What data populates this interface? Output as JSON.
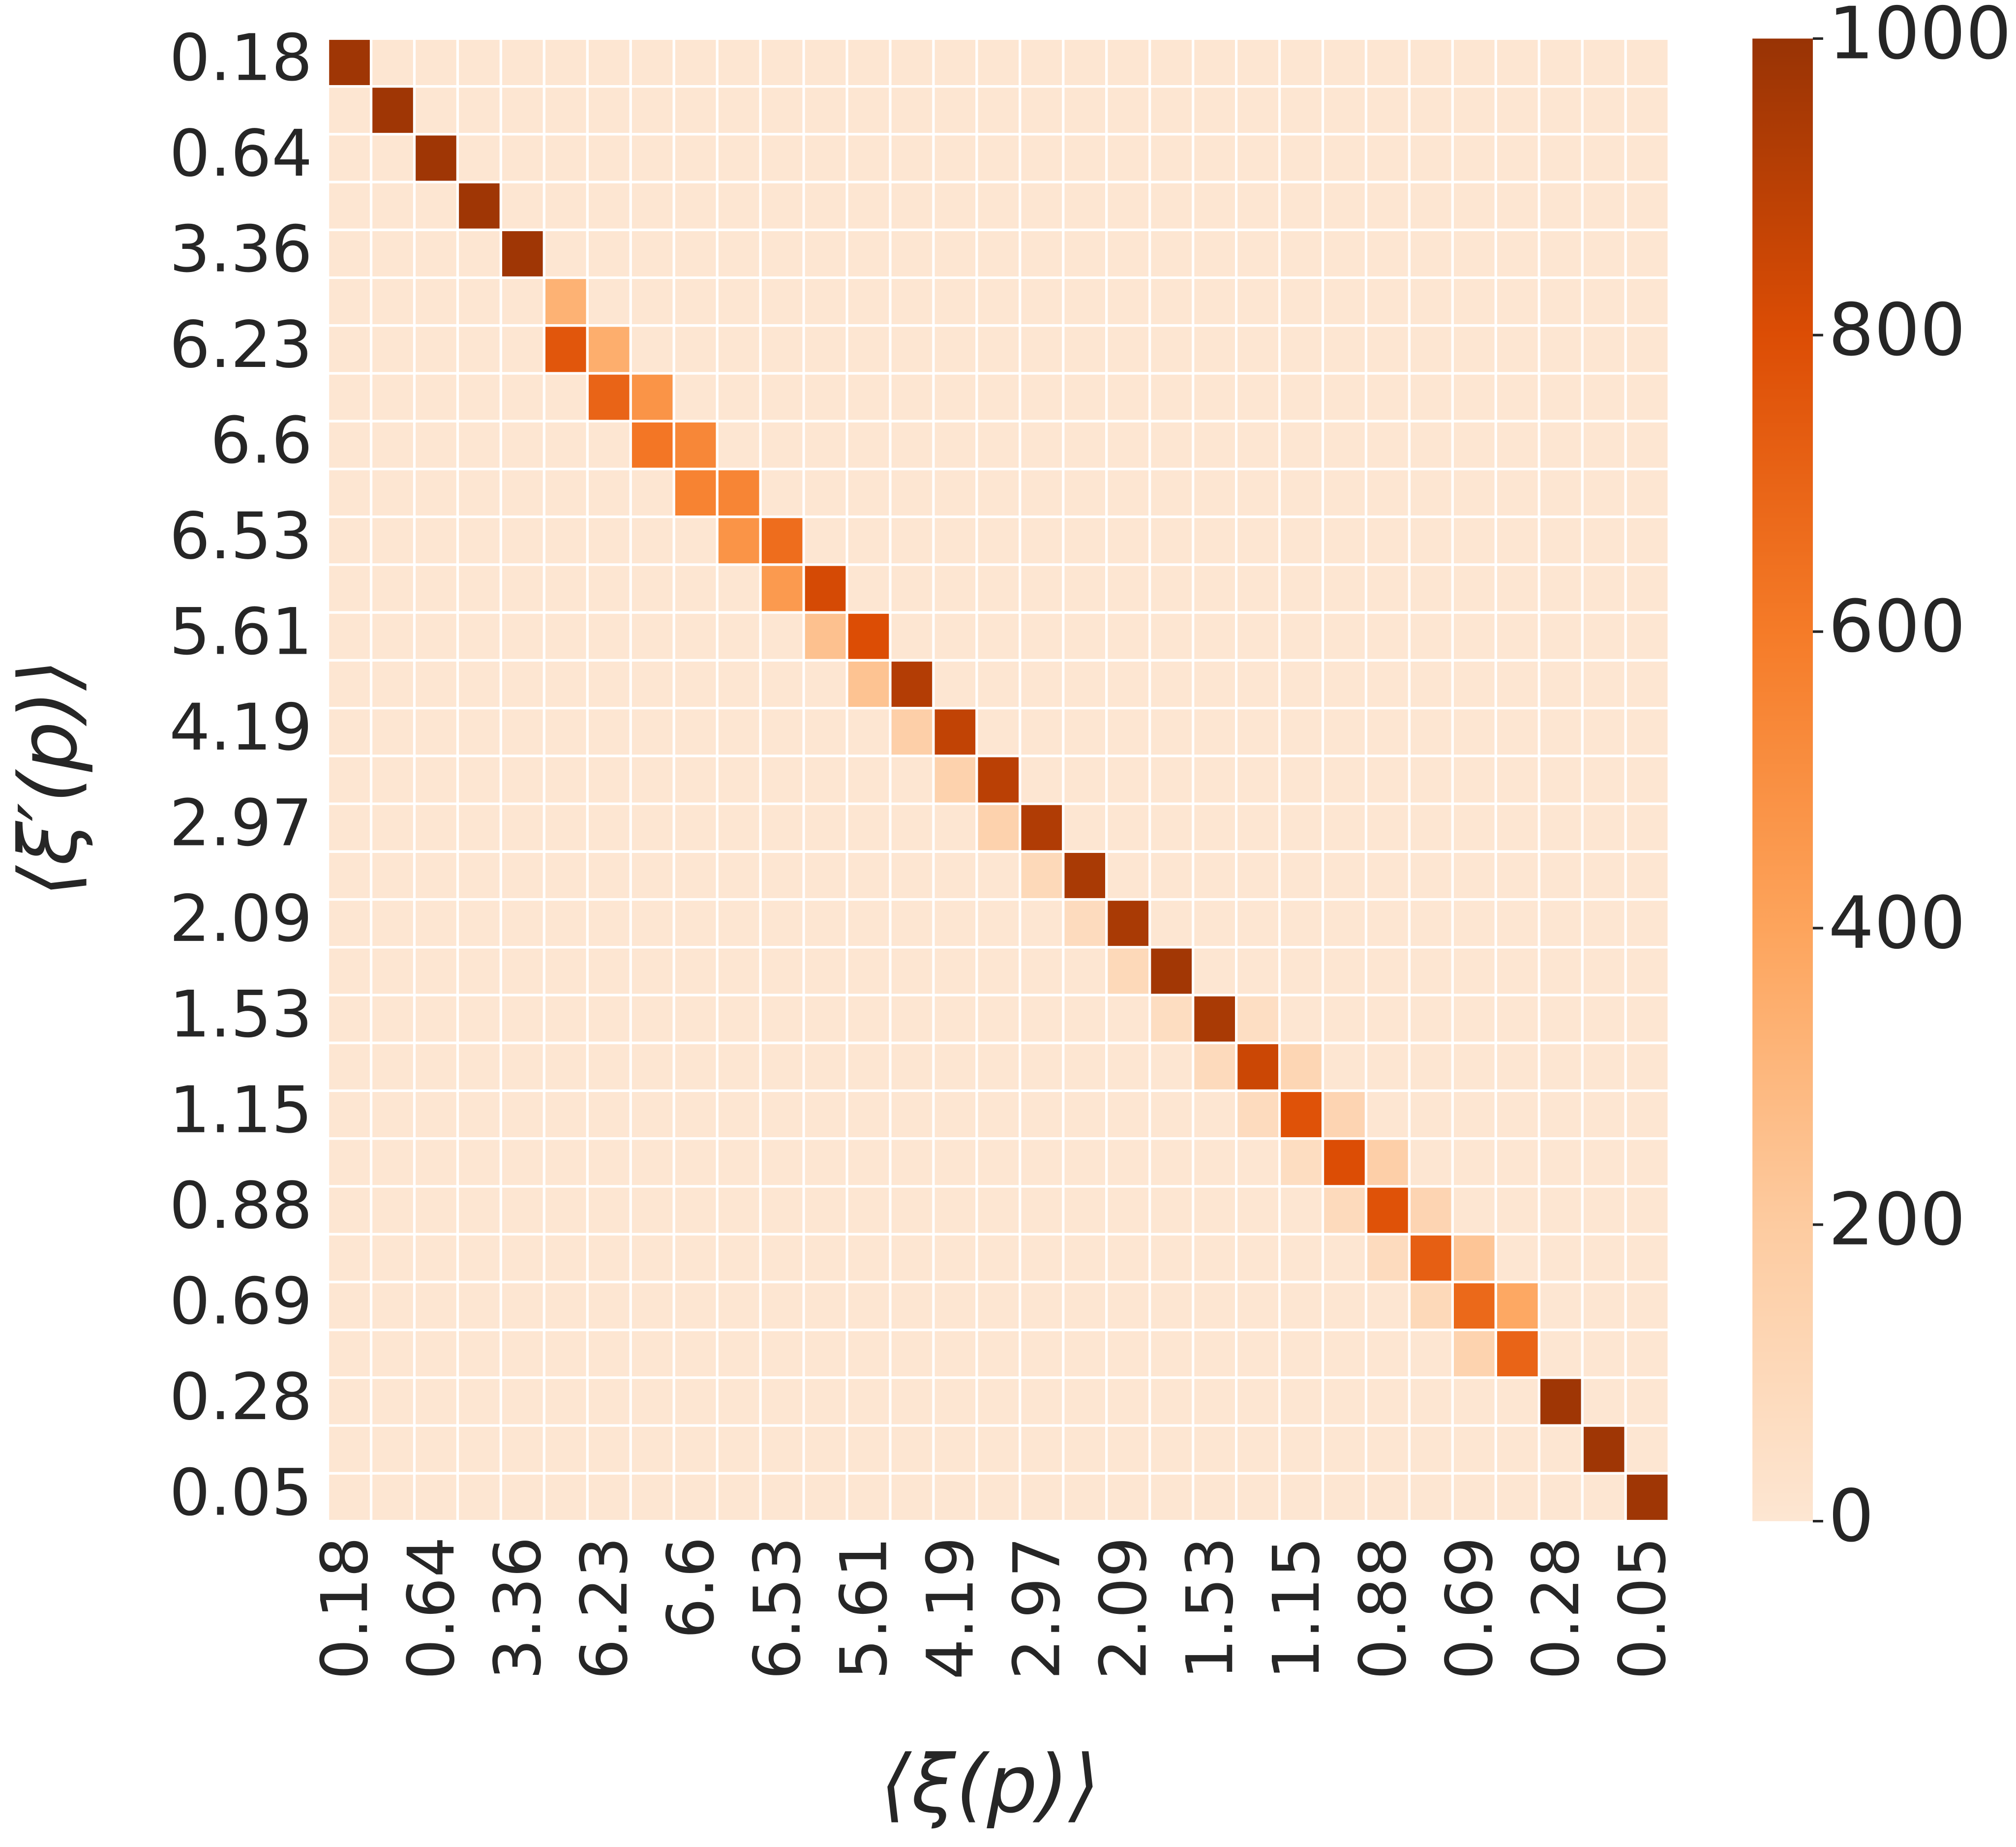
{
  "chart_data": {
    "type": "heatmap",
    "xlabel": "⟨ξ(p)⟩",
    "ylabel": "⟨ξ′(p)⟩",
    "x_categories": [
      "0.18",
      null,
      "0.64",
      null,
      "3.36",
      null,
      "6.23",
      null,
      "6.6",
      null,
      "6.53",
      null,
      "5.61",
      null,
      "4.19",
      null,
      "2.97",
      null,
      "2.09",
      null,
      "1.53",
      null,
      "1.15",
      null,
      "0.88",
      null,
      "0.69",
      null,
      "0.28",
      null,
      "0.05"
    ],
    "y_categories": [
      "0.18",
      null,
      "0.64",
      null,
      "3.36",
      null,
      "6.23",
      null,
      "6.6",
      null,
      "6.53",
      null,
      "5.61",
      null,
      "4.19",
      null,
      "2.97",
      null,
      "2.09",
      null,
      "1.53",
      null,
      "1.15",
      null,
      "0.88",
      null,
      "0.69",
      null,
      "0.28",
      null,
      "0.05"
    ],
    "values": [
      [
        980,
        0,
        0,
        0,
        0,
        0,
        0,
        0,
        0,
        0,
        0,
        0,
        0,
        0,
        0,
        0,
        0,
        0,
        0,
        0,
        0,
        0,
        0,
        0,
        0,
        0,
        0,
        0,
        0,
        0,
        0
      ],
      [
        0,
        980,
        0,
        0,
        0,
        0,
        0,
        0,
        0,
        0,
        0,
        0,
        0,
        0,
        0,
        0,
        0,
        0,
        0,
        0,
        0,
        0,
        0,
        0,
        0,
        0,
        0,
        0,
        0,
        0,
        0
      ],
      [
        0,
        0,
        980,
        0,
        0,
        0,
        0,
        0,
        0,
        0,
        0,
        0,
        0,
        0,
        0,
        0,
        0,
        0,
        0,
        0,
        0,
        0,
        0,
        0,
        0,
        0,
        0,
        0,
        0,
        0,
        0
      ],
      [
        0,
        0,
        0,
        980,
        0,
        0,
        0,
        0,
        0,
        0,
        0,
        0,
        0,
        0,
        0,
        0,
        0,
        0,
        0,
        0,
        0,
        0,
        0,
        0,
        0,
        0,
        0,
        0,
        0,
        0,
        0
      ],
      [
        0,
        0,
        0,
        0,
        980,
        0,
        0,
        0,
        0,
        0,
        0,
        0,
        0,
        0,
        0,
        0,
        0,
        0,
        0,
        0,
        0,
        0,
        0,
        0,
        0,
        0,
        0,
        0,
        0,
        0,
        0
      ],
      [
        0,
        0,
        0,
        0,
        0,
        330,
        0,
        0,
        0,
        0,
        0,
        0,
        0,
        0,
        0,
        0,
        0,
        0,
        0,
        0,
        0,
        0,
        0,
        0,
        0,
        0,
        0,
        0,
        0,
        0,
        0
      ],
      [
        0,
        0,
        0,
        0,
        0,
        760,
        350,
        0,
        0,
        0,
        0,
        0,
        0,
        0,
        0,
        0,
        0,
        0,
        0,
        0,
        0,
        0,
        0,
        0,
        0,
        0,
        0,
        0,
        0,
        0,
        0
      ],
      [
        0,
        0,
        0,
        0,
        0,
        0,
        700,
        480,
        0,
        0,
        0,
        0,
        0,
        0,
        0,
        0,
        0,
        0,
        0,
        0,
        0,
        0,
        0,
        0,
        0,
        0,
        0,
        0,
        0,
        0,
        0
      ],
      [
        0,
        0,
        0,
        0,
        0,
        0,
        0,
        620,
        540,
        0,
        0,
        0,
        0,
        0,
        0,
        0,
        0,
        0,
        0,
        0,
        0,
        0,
        0,
        0,
        0,
        0,
        0,
        0,
        0,
        0,
        0
      ],
      [
        0,
        0,
        0,
        0,
        0,
        0,
        0,
        0,
        560,
        550,
        0,
        0,
        0,
        0,
        0,
        0,
        0,
        0,
        0,
        0,
        0,
        0,
        0,
        0,
        0,
        0,
        0,
        0,
        0,
        0,
        0
      ],
      [
        0,
        0,
        0,
        0,
        0,
        0,
        0,
        0,
        0,
        480,
        660,
        0,
        0,
        0,
        0,
        0,
        0,
        0,
        0,
        0,
        0,
        0,
        0,
        0,
        0,
        0,
        0,
        0,
        0,
        0,
        0
      ],
      [
        0,
        0,
        0,
        0,
        0,
        0,
        0,
        0,
        0,
        0,
        450,
        820,
        0,
        0,
        0,
        0,
        0,
        0,
        0,
        0,
        0,
        0,
        0,
        0,
        0,
        0,
        0,
        0,
        0,
        0,
        0
      ],
      [
        0,
        0,
        0,
        0,
        0,
        0,
        0,
        0,
        0,
        0,
        0,
        250,
        800,
        0,
        0,
        0,
        0,
        0,
        0,
        0,
        0,
        0,
        0,
        0,
        0,
        0,
        0,
        0,
        0,
        0,
        0
      ],
      [
        0,
        0,
        0,
        0,
        0,
        0,
        0,
        0,
        0,
        0,
        0,
        0,
        240,
        920,
        0,
        0,
        0,
        0,
        0,
        0,
        0,
        0,
        0,
        0,
        0,
        0,
        0,
        0,
        0,
        0,
        0
      ],
      [
        0,
        0,
        0,
        0,
        0,
        0,
        0,
        0,
        0,
        0,
        0,
        0,
        0,
        170,
        880,
        0,
        0,
        0,
        0,
        0,
        0,
        0,
        0,
        0,
        0,
        0,
        0,
        0,
        0,
        0,
        0
      ],
      [
        0,
        0,
        0,
        0,
        0,
        0,
        0,
        0,
        0,
        0,
        0,
        0,
        0,
        0,
        150,
        900,
        0,
        0,
        0,
        0,
        0,
        0,
        0,
        0,
        0,
        0,
        0,
        0,
        0,
        0,
        0
      ],
      [
        0,
        0,
        0,
        0,
        0,
        0,
        0,
        0,
        0,
        0,
        0,
        0,
        0,
        0,
        0,
        150,
        930,
        0,
        0,
        0,
        0,
        0,
        0,
        0,
        0,
        0,
        0,
        0,
        0,
        0,
        0
      ],
      [
        0,
        0,
        0,
        0,
        0,
        0,
        0,
        0,
        0,
        0,
        0,
        0,
        0,
        0,
        0,
        0,
        100,
        950,
        0,
        0,
        0,
        0,
        0,
        0,
        0,
        0,
        0,
        0,
        0,
        0,
        0
      ],
      [
        0,
        0,
        0,
        0,
        0,
        0,
        0,
        0,
        0,
        0,
        0,
        0,
        0,
        0,
        0,
        0,
        0,
        80,
        950,
        0,
        0,
        0,
        0,
        0,
        0,
        0,
        0,
        0,
        0,
        0,
        0
      ],
      [
        0,
        0,
        0,
        0,
        0,
        0,
        0,
        0,
        0,
        0,
        0,
        0,
        0,
        0,
        0,
        0,
        0,
        0,
        100,
        970,
        0,
        0,
        0,
        0,
        0,
        0,
        0,
        0,
        0,
        0,
        0
      ],
      [
        0,
        0,
        0,
        0,
        0,
        0,
        0,
        0,
        0,
        0,
        0,
        0,
        0,
        0,
        0,
        0,
        0,
        0,
        0,
        70,
        950,
        60,
        0,
        0,
        0,
        0,
        0,
        0,
        0,
        0,
        0
      ],
      [
        0,
        0,
        0,
        0,
        0,
        0,
        0,
        0,
        0,
        0,
        0,
        0,
        0,
        0,
        0,
        0,
        0,
        0,
        0,
        0,
        90,
        850,
        120,
        0,
        0,
        0,
        0,
        0,
        0,
        0,
        0
      ],
      [
        0,
        0,
        0,
        0,
        0,
        0,
        0,
        0,
        0,
        0,
        0,
        0,
        0,
        0,
        0,
        0,
        0,
        0,
        0,
        0,
        0,
        80,
        780,
        130,
        0,
        0,
        0,
        0,
        0,
        0,
        0
      ],
      [
        0,
        0,
        0,
        0,
        0,
        0,
        0,
        0,
        0,
        0,
        0,
        0,
        0,
        0,
        0,
        0,
        0,
        0,
        0,
        0,
        0,
        0,
        70,
        800,
        170,
        0,
        0,
        0,
        0,
        0,
        0
      ],
      [
        0,
        0,
        0,
        0,
        0,
        0,
        0,
        0,
        0,
        0,
        0,
        0,
        0,
        0,
        0,
        0,
        0,
        0,
        0,
        0,
        0,
        0,
        0,
        90,
        780,
        130,
        0,
        0,
        0,
        0,
        0
      ],
      [
        0,
        0,
        0,
        0,
        0,
        0,
        0,
        0,
        0,
        0,
        0,
        0,
        0,
        0,
        0,
        0,
        0,
        0,
        0,
        0,
        0,
        0,
        0,
        0,
        80,
        720,
        230,
        0,
        0,
        0,
        0
      ],
      [
        0,
        0,
        0,
        0,
        0,
        0,
        0,
        0,
        0,
        0,
        0,
        0,
        0,
        0,
        0,
        0,
        0,
        0,
        0,
        0,
        0,
        0,
        0,
        0,
        0,
        100,
        680,
        380,
        0,
        0,
        0
      ],
      [
        0,
        0,
        0,
        0,
        0,
        0,
        0,
        0,
        0,
        0,
        0,
        0,
        0,
        0,
        0,
        0,
        0,
        0,
        0,
        0,
        0,
        0,
        0,
        0,
        0,
        0,
        140,
        700,
        0,
        0,
        0
      ],
      [
        0,
        0,
        0,
        0,
        0,
        0,
        0,
        0,
        0,
        0,
        0,
        0,
        0,
        0,
        0,
        0,
        0,
        0,
        0,
        0,
        0,
        0,
        0,
        0,
        0,
        0,
        0,
        0,
        980,
        0,
        0
      ],
      [
        0,
        0,
        0,
        0,
        0,
        0,
        0,
        0,
        0,
        0,
        0,
        0,
        0,
        0,
        0,
        0,
        0,
        0,
        0,
        0,
        0,
        0,
        0,
        0,
        0,
        0,
        0,
        0,
        0,
        980,
        0
      ],
      [
        0,
        0,
        0,
        0,
        0,
        0,
        0,
        0,
        0,
        0,
        0,
        0,
        0,
        0,
        0,
        0,
        0,
        0,
        0,
        0,
        0,
        0,
        0,
        0,
        0,
        0,
        0,
        0,
        0,
        0,
        980
      ]
    ],
    "clim": [
      0,
      1000
    ],
    "colorbar_ticks": [
      0,
      200,
      400,
      600,
      800,
      1000
    ],
    "colors": [
      "#fde6d2",
      "#fdcba0",
      "#fda45c",
      "#f57b28",
      "#dc4d05",
      "#983305"
    ]
  }
}
